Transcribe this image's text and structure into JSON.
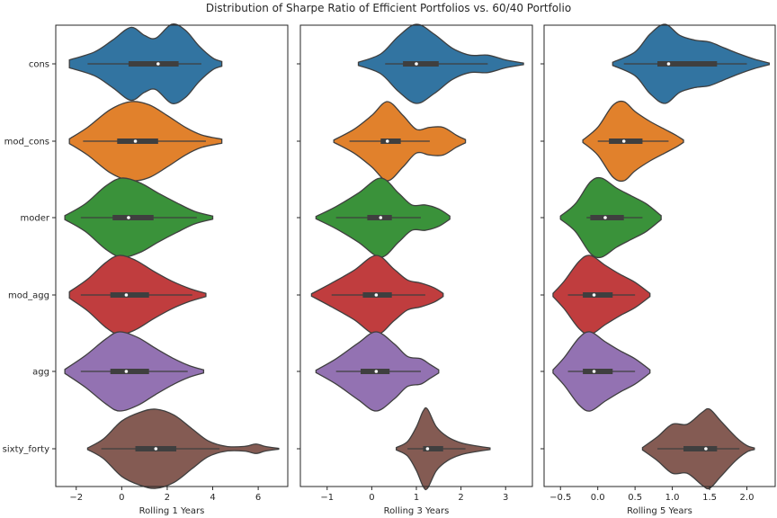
{
  "chart_data": {
    "type": "violin",
    "title": "Distribution of Sharpe Ratio of Efficient Portfolios vs. 60/40 Portfolio",
    "categories": [
      "cons",
      "mod_cons",
      "moder",
      "mod_agg",
      "agg",
      "sixty_forty"
    ],
    "colors": [
      "#3274a1",
      "#e1812c",
      "#3a923a",
      "#c03d3e",
      "#9372b2",
      "#845b53"
    ],
    "orientation": "horizontal",
    "grid": false,
    "panels": [
      {
        "xlabel": "Rolling 1 Years",
        "xlim": [
          -2.9,
          7.3
        ],
        "xticks": [
          -2,
          0,
          2,
          4,
          6
        ],
        "series": [
          {
            "name": "cons",
            "whisker": [
              -1.5,
              3.5
            ],
            "q1": 0.3,
            "median": 1.6,
            "q3": 2.5,
            "range": [
              -2.3,
              4.4
            ],
            "density": [
              [
                -2.3,
                0.1
              ],
              [
                -1.2,
                0.3
              ],
              [
                -0.4,
                0.6
              ],
              [
                0.4,
                0.92
              ],
              [
                1.0,
                0.72
              ],
              [
                1.5,
                0.65
              ],
              [
                2.2,
                1.0
              ],
              [
                2.8,
                0.85
              ],
              [
                3.4,
                0.45
              ],
              [
                4.0,
                0.15
              ],
              [
                4.4,
                0.06
              ]
            ]
          },
          {
            "name": "mod_cons",
            "whisker": [
              -1.7,
              3.7
            ],
            "q1": -0.2,
            "median": 0.6,
            "q3": 1.6,
            "range": [
              -2.3,
              4.4
            ],
            "density": [
              [
                -2.3,
                0.06
              ],
              [
                -1.5,
                0.35
              ],
              [
                -0.5,
                0.8
              ],
              [
                0.4,
                1.0
              ],
              [
                1.2,
                0.92
              ],
              [
                2.0,
                0.65
              ],
              [
                2.8,
                0.35
              ],
              [
                3.5,
                0.16
              ],
              [
                4.4,
                0.05
              ]
            ]
          },
          {
            "name": "moder",
            "whisker": [
              -1.8,
              3.3
            ],
            "q1": -0.4,
            "median": 0.3,
            "q3": 1.4,
            "range": [
              -2.5,
              4.0
            ],
            "density": [
              [
                -2.5,
                0.05
              ],
              [
                -1.6,
                0.35
              ],
              [
                -0.7,
                0.8
              ],
              [
                0.0,
                1.0
              ],
              [
                0.8,
                0.88
              ],
              [
                1.6,
                0.62
              ],
              [
                2.4,
                0.38
              ],
              [
                3.2,
                0.16
              ],
              [
                4.0,
                0.04
              ]
            ]
          },
          {
            "name": "mod_agg",
            "whisker": [
              -1.8,
              3.1
            ],
            "q1": -0.5,
            "median": 0.2,
            "q3": 1.2,
            "range": [
              -2.3,
              3.7
            ],
            "density": [
              [
                -2.3,
                0.08
              ],
              [
                -1.5,
                0.4
              ],
              [
                -0.7,
                0.82
              ],
              [
                -0.1,
                1.0
              ],
              [
                0.6,
                0.88
              ],
              [
                1.4,
                0.6
              ],
              [
                2.2,
                0.35
              ],
              [
                3.0,
                0.16
              ],
              [
                3.7,
                0.04
              ]
            ]
          },
          {
            "name": "agg",
            "whisker": [
              -1.8,
              2.9
            ],
            "q1": -0.5,
            "median": 0.2,
            "q3": 1.2,
            "range": [
              -2.5,
              3.6
            ],
            "density": [
              [
                -2.5,
                0.05
              ],
              [
                -1.6,
                0.4
              ],
              [
                -0.7,
                0.82
              ],
              [
                -0.1,
                1.0
              ],
              [
                0.7,
                0.86
              ],
              [
                1.5,
                0.58
              ],
              [
                2.3,
                0.32
              ],
              [
                3.0,
                0.14
              ],
              [
                3.6,
                0.04
              ]
            ]
          },
          {
            "name": "sixty_forty",
            "whisker": [
              -0.9,
              4.3
            ],
            "q1": 0.6,
            "median": 1.5,
            "q3": 2.4,
            "range": [
              -1.5,
              6.9
            ],
            "density": [
              [
                -1.5,
                0.02
              ],
              [
                -0.8,
                0.25
              ],
              [
                0.0,
                0.7
              ],
              [
                0.8,
                0.92
              ],
              [
                1.5,
                1.0
              ],
              [
                2.3,
                0.85
              ],
              [
                3.1,
                0.5
              ],
              [
                3.8,
                0.2
              ],
              [
                4.6,
                0.06
              ],
              [
                5.4,
                0.06
              ],
              [
                5.9,
                0.12
              ],
              [
                6.3,
                0.06
              ],
              [
                6.9,
                0.01
              ]
            ]
          }
        ]
      },
      {
        "xlabel": "Rolling 3 Years",
        "xlim": [
          -1.6,
          3.6
        ],
        "xticks": [
          -1,
          0,
          1,
          2,
          3
        ],
        "series": [
          {
            "name": "cons",
            "whisker": [
              0.3,
              2.6
            ],
            "q1": 0.7,
            "median": 1.0,
            "q3": 1.5,
            "range": [
              -0.3,
              3.4
            ],
            "density": [
              [
                -0.3,
                0.04
              ],
              [
                0.2,
                0.25
              ],
              [
                0.6,
                0.7
              ],
              [
                1.0,
                1.0
              ],
              [
                1.4,
                0.75
              ],
              [
                1.8,
                0.4
              ],
              [
                2.2,
                0.22
              ],
              [
                2.6,
                0.22
              ],
              [
                3.0,
                0.1
              ],
              [
                3.4,
                0.02
              ]
            ]
          },
          {
            "name": "mod_cons",
            "whisker": [
              -0.5,
              1.3
            ],
            "q1": 0.2,
            "median": 0.35,
            "q3": 0.65,
            "range": [
              -0.85,
              2.1
            ],
            "density": [
              [
                -0.85,
                0.03
              ],
              [
                -0.4,
                0.3
              ],
              [
                0.0,
                0.65
              ],
              [
                0.35,
                1.0
              ],
              [
                0.7,
                0.65
              ],
              [
                1.0,
                0.3
              ],
              [
                1.3,
                0.35
              ],
              [
                1.6,
                0.35
              ],
              [
                1.9,
                0.15
              ],
              [
                2.1,
                0.04
              ]
            ]
          },
          {
            "name": "moder",
            "whisker": [
              -0.8,
              1.1
            ],
            "q1": -0.1,
            "median": 0.2,
            "q3": 0.45,
            "range": [
              -1.25,
              1.75
            ],
            "density": [
              [
                -1.25,
                0.03
              ],
              [
                -0.8,
                0.28
              ],
              [
                -0.3,
                0.62
              ],
              [
                0.2,
                1.0
              ],
              [
                0.6,
                0.62
              ],
              [
                0.9,
                0.32
              ],
              [
                1.2,
                0.32
              ],
              [
                1.5,
                0.22
              ],
              [
                1.75,
                0.04
              ]
            ]
          },
          {
            "name": "mod_agg",
            "whisker": [
              -0.9,
              1.2
            ],
            "q1": -0.2,
            "median": 0.1,
            "q3": 0.45,
            "range": [
              -1.35,
              1.6
            ],
            "density": [
              [
                -1.35,
                0.03
              ],
              [
                -0.9,
                0.3
              ],
              [
                -0.4,
                0.62
              ],
              [
                0.1,
                1.0
              ],
              [
                0.5,
                0.65
              ],
              [
                0.8,
                0.38
              ],
              [
                1.1,
                0.3
              ],
              [
                1.4,
                0.18
              ],
              [
                1.6,
                0.04
              ]
            ]
          },
          {
            "name": "agg",
            "whisker": [
              -0.8,
              1.1
            ],
            "q1": -0.25,
            "median": 0.1,
            "q3": 0.4,
            "range": [
              -1.25,
              1.5
            ],
            "density": [
              [
                -1.25,
                0.03
              ],
              [
                -0.8,
                0.32
              ],
              [
                -0.3,
                0.72
              ],
              [
                0.1,
                1.0
              ],
              [
                0.5,
                0.7
              ],
              [
                0.8,
                0.38
              ],
              [
                1.1,
                0.32
              ],
              [
                1.3,
                0.18
              ],
              [
                1.5,
                0.04
              ]
            ]
          },
          {
            "name": "sixty_forty",
            "whisker": [
              0.8,
              2.1
            ],
            "q1": 1.15,
            "median": 1.25,
            "q3": 1.6,
            "range": [
              0.55,
              2.65
            ],
            "density": [
              [
                0.55,
                0.03
              ],
              [
                0.8,
                0.18
              ],
              [
                1.0,
                0.55
              ],
              [
                1.15,
                0.95
              ],
              [
                1.25,
                1.0
              ],
              [
                1.45,
                0.55
              ],
              [
                1.7,
                0.3
              ],
              [
                2.0,
                0.15
              ],
              [
                2.3,
                0.08
              ],
              [
                2.65,
                0.02
              ]
            ]
          }
        ]
      },
      {
        "xlabel": "Rolling 5 Years",
        "xlim": [
          -0.72,
          2.38
        ],
        "xticks": [
          -0.5,
          0.0,
          0.5,
          1.0,
          1.5,
          2.0
        ],
        "series": [
          {
            "name": "cons",
            "whisker": [
              0.35,
              2.0
            ],
            "q1": 0.8,
            "median": 0.95,
            "q3": 1.6,
            "range": [
              0.2,
              2.3
            ],
            "density": [
              [
                0.2,
                0.04
              ],
              [
                0.5,
                0.3
              ],
              [
                0.7,
                0.75
              ],
              [
                0.9,
                1.0
              ],
              [
                1.1,
                0.72
              ],
              [
                1.3,
                0.6
              ],
              [
                1.5,
                0.55
              ],
              [
                1.7,
                0.4
              ],
              [
                1.9,
                0.25
              ],
              [
                2.1,
                0.12
              ],
              [
                2.3,
                0.02
              ]
            ]
          },
          {
            "name": "mod_cons",
            "whisker": [
              0.0,
              0.95
            ],
            "q1": 0.15,
            "median": 0.35,
            "q3": 0.6,
            "range": [
              -0.2,
              1.15
            ],
            "density": [
              [
                -0.2,
                0.03
              ],
              [
                0.0,
                0.35
              ],
              [
                0.2,
                0.9
              ],
              [
                0.35,
                1.0
              ],
              [
                0.5,
                0.75
              ],
              [
                0.7,
                0.5
              ],
              [
                0.9,
                0.3
              ],
              [
                1.05,
                0.15
              ],
              [
                1.15,
                0.03
              ]
            ]
          },
          {
            "name": "moder",
            "whisker": [
              -0.15,
              0.6
            ],
            "q1": -0.1,
            "median": 0.1,
            "q3": 0.35,
            "range": [
              -0.5,
              0.85
            ],
            "density": [
              [
                -0.5,
                0.04
              ],
              [
                -0.3,
                0.35
              ],
              [
                -0.1,
                0.9
              ],
              [
                0.05,
                1.0
              ],
              [
                0.25,
                0.75
              ],
              [
                0.45,
                0.55
              ],
              [
                0.65,
                0.35
              ],
              [
                0.85,
                0.05
              ]
            ]
          },
          {
            "name": "mod_agg",
            "whisker": [
              -0.4,
              0.5
            ],
            "q1": -0.2,
            "median": -0.05,
            "q3": 0.2,
            "range": [
              -0.6,
              0.7
            ],
            "density": [
              [
                -0.6,
                0.04
              ],
              [
                -0.45,
                0.35
              ],
              [
                -0.25,
                0.85
              ],
              [
                -0.1,
                1.0
              ],
              [
                0.1,
                0.75
              ],
              [
                0.3,
                0.52
              ],
              [
                0.5,
                0.32
              ],
              [
                0.7,
                0.04
              ]
            ]
          },
          {
            "name": "agg",
            "whisker": [
              -0.4,
              0.5
            ],
            "q1": -0.2,
            "median": -0.05,
            "q3": 0.2,
            "range": [
              -0.6,
              0.7
            ],
            "density": [
              [
                -0.6,
                0.04
              ],
              [
                -0.45,
                0.35
              ],
              [
                -0.25,
                0.85
              ],
              [
                -0.1,
                1.0
              ],
              [
                0.1,
                0.75
              ],
              [
                0.3,
                0.52
              ],
              [
                0.5,
                0.32
              ],
              [
                0.7,
                0.04
              ]
            ]
          },
          {
            "name": "sixty_forty",
            "whisker": [
              0.8,
              1.9
            ],
            "q1": 1.15,
            "median": 1.45,
            "q3": 1.6,
            "range": [
              0.6,
              2.1
            ],
            "density": [
              [
                0.6,
                0.03
              ],
              [
                0.8,
                0.3
              ],
              [
                1.0,
                0.62
              ],
              [
                1.2,
                0.62
              ],
              [
                1.4,
                0.92
              ],
              [
                1.5,
                1.0
              ],
              [
                1.65,
                0.7
              ],
              [
                1.85,
                0.3
              ],
              [
                2.0,
                0.08
              ],
              [
                2.1,
                0.02
              ]
            ]
          }
        ]
      }
    ]
  }
}
